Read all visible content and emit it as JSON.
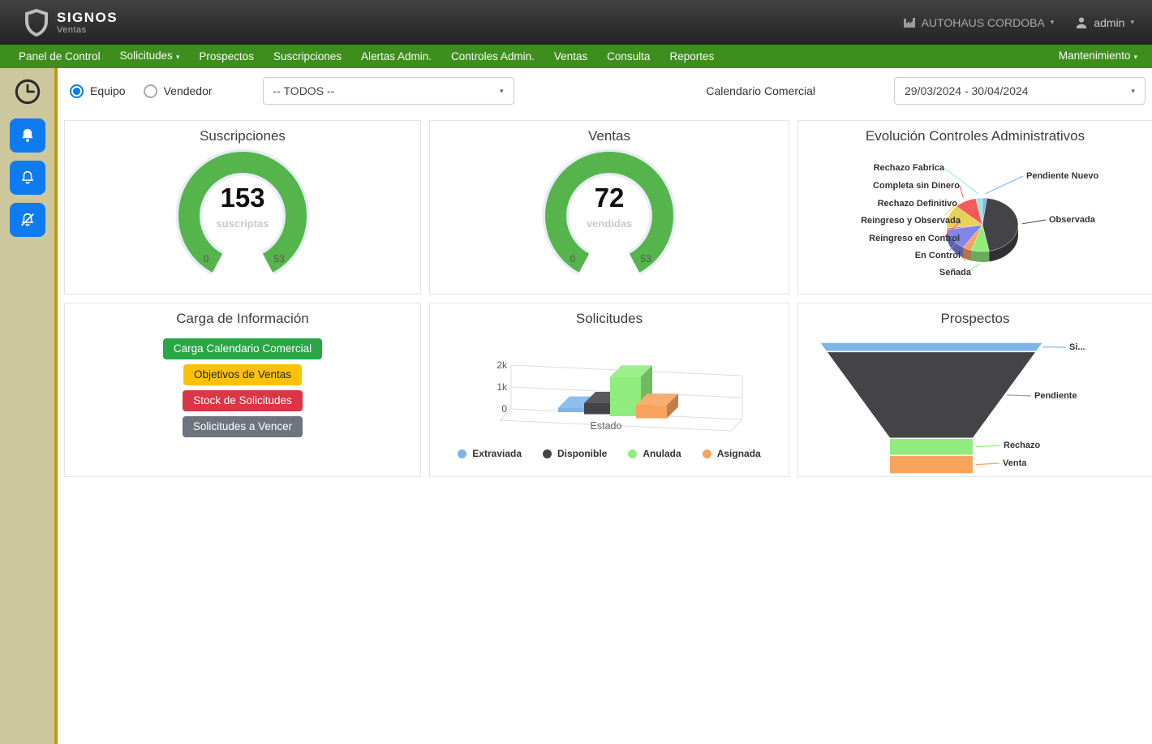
{
  "header": {
    "brand": "SIGNOS",
    "brand_sub": "Ventas",
    "company": "AUTOHAUS CORDOBA",
    "user": "admin",
    "icons": [
      "shield-logo-icon",
      "factory-icon",
      "person-icon",
      "caret-down-icon"
    ]
  },
  "nav": {
    "items": [
      {
        "label": "Panel de Control",
        "caret": false
      },
      {
        "label": "Solicitudes",
        "caret": true
      },
      {
        "label": "Prospectos",
        "caret": false
      },
      {
        "label": "Suscripciones",
        "caret": false
      },
      {
        "label": "Alertas Admin.",
        "caret": false
      },
      {
        "label": "Controles Admin.",
        "caret": false
      },
      {
        "label": "Ventas",
        "caret": false
      },
      {
        "label": "Consulta",
        "caret": false
      },
      {
        "label": "Reportes",
        "caret": false
      }
    ],
    "right_item": {
      "label": "Mantenimiento",
      "caret": true
    }
  },
  "sidebar": {
    "icons": [
      "clock-icon",
      "bell-filled-icon",
      "bell-outline-icon",
      "bell-slash-icon"
    ],
    "button_color": "#0e7bf0"
  },
  "filters": {
    "radio_equipo": "Equipo",
    "radio_vendedor": "Vendedor",
    "selected_radio": "Equipo",
    "team_select_value": "-- TODOS --",
    "calendar_label": "Calendario Comercial",
    "calendar_select_value": "29/03/2024 - 30/04/2024"
  },
  "cards": {
    "info_title": "Carga de Información",
    "buttons": [
      {
        "label": "Carga Calendario Comercial",
        "color": "#28a745",
        "text": "#ffffff"
      },
      {
        "label": "Objetivos de Ventas",
        "color": "#ffc107",
        "text": "#212529"
      },
      {
        "label": "Stock de Solicitudes",
        "color": "#dc3545",
        "text": "#ffffff"
      },
      {
        "label": "Solicitudes a Vencer",
        "color": "#6c757d",
        "text": "#ffffff"
      }
    ]
  },
  "chart_data": [
    {
      "type": "gauge",
      "title": "Suscripciones",
      "value": 153,
      "label": "suscriptas",
      "min": 0,
      "max": 53,
      "color": "#55b44c"
    },
    {
      "type": "gauge",
      "title": "Ventas",
      "value": 72,
      "label": "vendidas",
      "min": 0,
      "max": 53,
      "color": "#55b44c"
    },
    {
      "type": "pie",
      "title": "Evolución Controles Administrativos",
      "slices": [
        {
          "name": "Pendiente Nuevo",
          "pct": 2,
          "color": "#7cb5ec"
        },
        {
          "name": "Observada",
          "pct": 45,
          "color": "#434348"
        },
        {
          "name": "Señada",
          "pct": 8,
          "color": "#90ed7d"
        },
        {
          "name": "En Control",
          "pct": 4,
          "color": "#f7a35c"
        },
        {
          "name": "Reingreso en Control",
          "pct": 13,
          "color": "#8085e9"
        },
        {
          "name": "Reingreso y Observada",
          "pct": 1,
          "color": "#f15c80"
        },
        {
          "name": "Rechazo Definitivo",
          "pct": 14,
          "color": "#e4d354"
        },
        {
          "name": "Completa sin Dinero",
          "pct": 10,
          "color": "#f45b5b"
        },
        {
          "name": "Rechazo Fabrica",
          "pct": 3,
          "color": "#91e8e1"
        }
      ]
    },
    {
      "type": "bar",
      "title": "Solicitudes",
      "xlabel": "Estado",
      "categories": [
        "Extraviada",
        "Disponible",
        "Anulada",
        "Asignada"
      ],
      "values": [
        200,
        500,
        1800,
        600
      ],
      "colors": [
        "#7cb5ec",
        "#434348",
        "#90ed7d",
        "#f7a35c"
      ],
      "yticks": [
        "0",
        "1k",
        "2k"
      ],
      "ylim": [
        0,
        2000
      ],
      "legend_position": "bottom"
    },
    {
      "type": "funnel",
      "title": "Prospectos",
      "segments": [
        {
          "name": "Si...",
          "pct": 7,
          "color": "#7cb5ec"
        },
        {
          "name": "Pendiente",
          "pct": 66,
          "color": "#434348"
        },
        {
          "name": "Rechazo",
          "pct": 13,
          "color": "#90ed7d"
        },
        {
          "name": "Venta",
          "pct": 14,
          "color": "#f7a35c"
        }
      ]
    }
  ]
}
